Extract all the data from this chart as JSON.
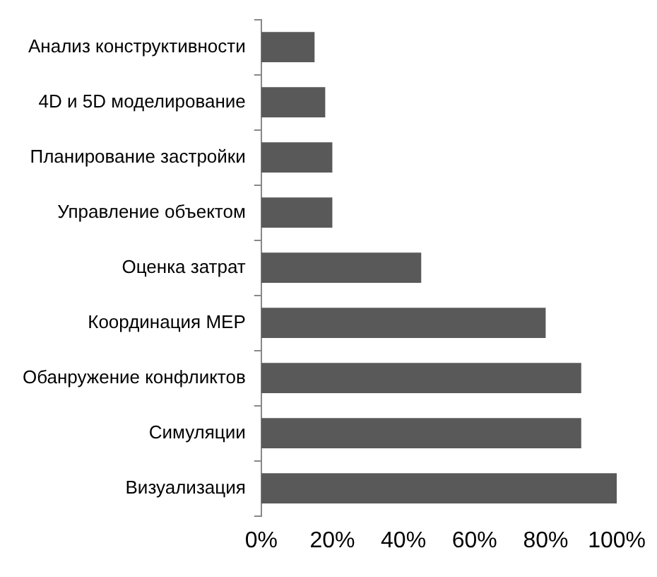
{
  "chart_data": {
    "type": "bar",
    "orientation": "horizontal",
    "categories": [
      "Анализ конструктивности",
      "4D и 5D моделирование",
      "Планирование застройки",
      "Управление объектом",
      "Оценка затрат",
      "Координация MEP",
      "Обанружение конфликтов",
      "Симуляции",
      "Визуализация"
    ],
    "values": [
      15,
      18,
      20,
      20,
      45,
      80,
      90,
      90,
      100
    ],
    "color": "#595959",
    "xlim": [
      0,
      100
    ],
    "xticks": [
      {
        "value": 0,
        "label": "0%"
      },
      {
        "value": 20,
        "label": "20%"
      },
      {
        "value": 40,
        "label": "40%"
      },
      {
        "value": 60,
        "label": "60%"
      },
      {
        "value": 80,
        "label": "80%"
      },
      {
        "value": 100,
        "label": "100%"
      }
    ],
    "grid": false,
    "legend": false
  }
}
